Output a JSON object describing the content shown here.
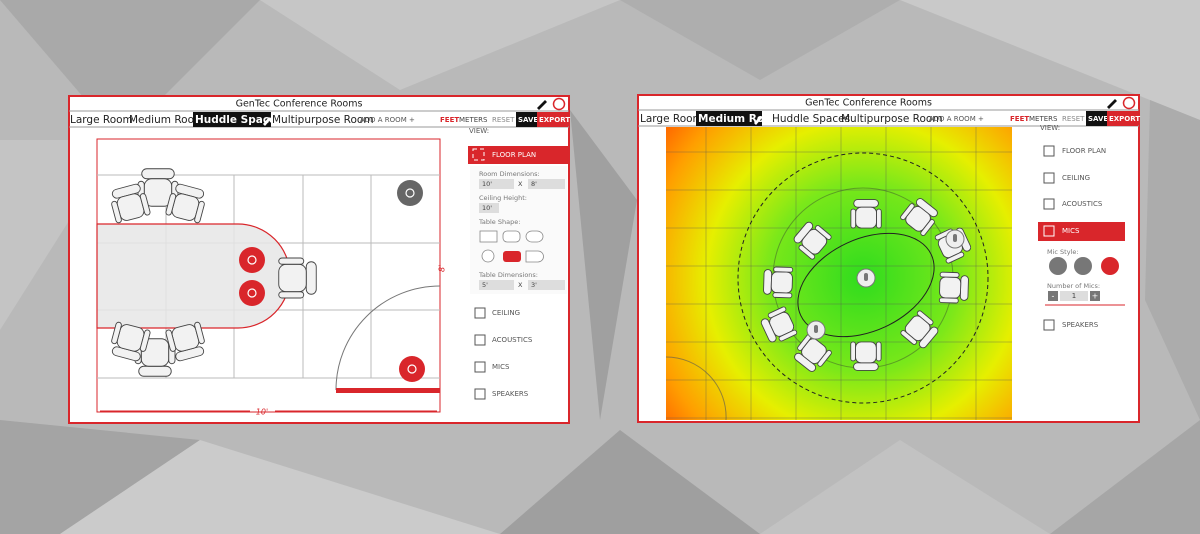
{
  "left_window": {
    "title": "GenTec Conference Rooms",
    "tabs": [
      "Large Room",
      "Medium Room",
      "Huddle Spaces",
      "Multipurpose Room"
    ],
    "add_room": "ADD A ROOM +",
    "units": [
      "FEET",
      "METERS"
    ],
    "reset": "RESET",
    "save": "SAVE",
    "export": "EXPORT",
    "view_label": "VIEW:",
    "floor_plan": "FLOOR PLAN",
    "room_dimensions": {
      "label": "Room Dimensions:",
      "width": "10'",
      "separator": "X",
      "length": "8'"
    },
    "ceiling_height": {
      "label": "Ceiling Height:",
      "value": "10'"
    },
    "table_shape_label": "Table Shape:",
    "table_dimensions": {
      "label": "Table Dimensions:",
      "width": "5'",
      "separator": "X",
      "length": "3'"
    },
    "views": [
      "CEILING",
      "ACOUSTICS",
      "MICS",
      "SPEAKERS"
    ],
    "room_width_label": "10'",
    "room_length_label": "8'"
  },
  "right_window": {
    "title": "GenTec Conference Rooms",
    "tabs": [
      "Large Room",
      "Medium Room",
      "Huddle Spaces",
      "Multipurpose Room"
    ],
    "add_room": "ADD A ROOM +",
    "units": [
      "FEET",
      "METERS"
    ],
    "reset": "RESET",
    "save": "SAVE",
    "export": "EXPORT",
    "view_label": "VIEW:",
    "views": [
      "FLOOR PLAN",
      "CEILING",
      "ACOUSTICS",
      "MICS"
    ],
    "mic_style_label": "Mic Style:",
    "number_of_mics": {
      "label": "Number of Mics:",
      "minus": "-",
      "value": "1",
      "plus": "+"
    },
    "speakers": "SPEAKERS"
  }
}
